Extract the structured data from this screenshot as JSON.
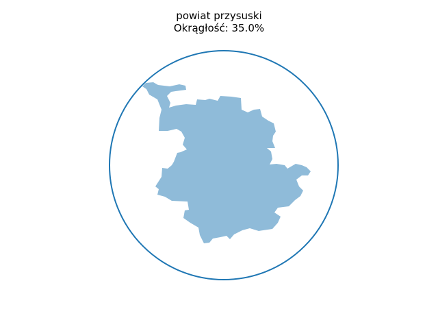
{
  "title": {
    "line1": "powiat przysuski",
    "line2": "Okrągłość: 35.0%"
  },
  "figure": {
    "roundness_percent": 35.0,
    "circle_color": "#1f77b4",
    "shape_fill": "#1f77b4",
    "shape_opacity": 0.5
  }
}
